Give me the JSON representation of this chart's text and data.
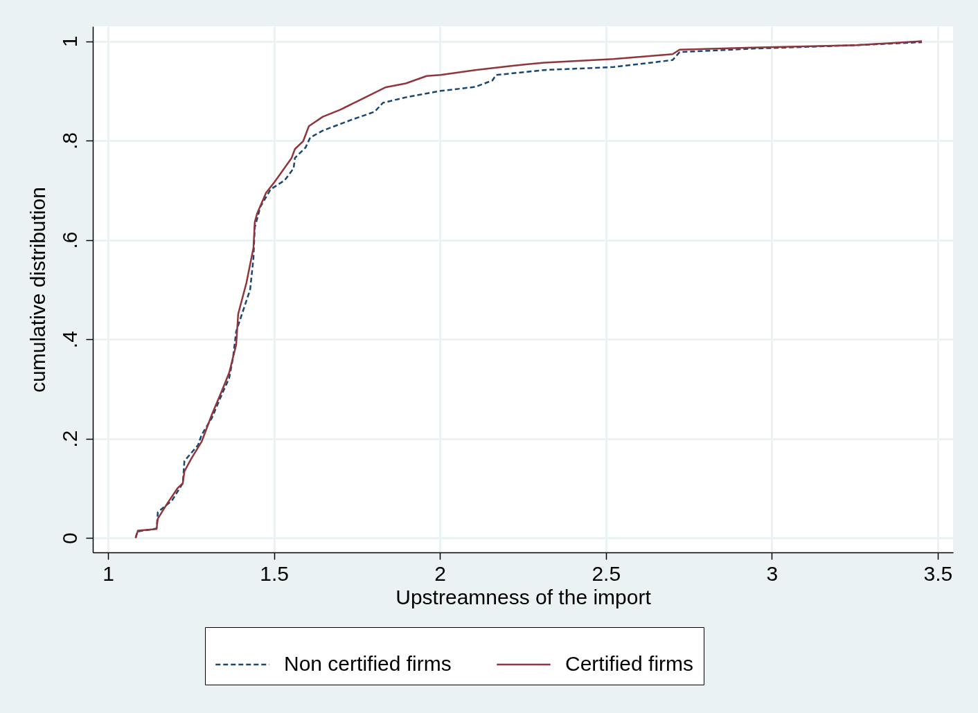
{
  "chart_data": {
    "type": "line",
    "xlabel": "Upstreamness of the import",
    "ylabel": "cumulative distribution",
    "xlim": [
      0.954,
      3.546
    ],
    "xticks": [
      1,
      1.5,
      2,
      2.5,
      3,
      3.5
    ],
    "ylim": [
      -0.029,
      1.03
    ],
    "yticks": [
      {
        "value": 0,
        "label": "0"
      },
      {
        "value": 0.2,
        "label": ".2"
      },
      {
        "value": 0.4,
        "label": ".4"
      },
      {
        "value": 0.6,
        "label": ".6"
      },
      {
        "value": 0.8,
        "label": ".8"
      },
      {
        "value": 1,
        "label": "1"
      }
    ],
    "grid": true,
    "legend": "bottom",
    "series": [
      {
        "name": "Non certified firms",
        "color": "#1a476f",
        "line_style": "dashed",
        "x": [
          1.083,
          1.088,
          1.146,
          1.15,
          1.192,
          1.225,
          1.23,
          1.271,
          1.282,
          1.313,
          1.344,
          1.365,
          1.376,
          1.386,
          1.407,
          1.428,
          1.438,
          1.442,
          1.459,
          1.49,
          1.532,
          1.559,
          1.563,
          1.595,
          1.609,
          1.647,
          1.73,
          1.803,
          1.828,
          1.897,
          2.002,
          2.106,
          2.158,
          2.169,
          2.315,
          2.523,
          2.701,
          2.722,
          2.941,
          3.254,
          3.452
        ],
        "values": [
          0,
          0.013,
          0.019,
          0.052,
          0.075,
          0.11,
          0.155,
          0.187,
          0.208,
          0.242,
          0.291,
          0.322,
          0.361,
          0.416,
          0.458,
          0.5,
          0.563,
          0.625,
          0.667,
          0.702,
          0.72,
          0.744,
          0.765,
          0.786,
          0.806,
          0.82,
          0.841,
          0.858,
          0.876,
          0.887,
          0.9,
          0.908,
          0.921,
          0.932,
          0.942,
          0.948,
          0.962,
          0.978,
          0.985,
          0.992,
          0.998
        ]
      },
      {
        "name": "Certified firms",
        "color": "#90353b",
        "line_style": "solid",
        "x": [
          1.083,
          1.09,
          1.146,
          1.15,
          1.177,
          1.209,
          1.225,
          1.23,
          1.25,
          1.282,
          1.313,
          1.344,
          1.365,
          1.386,
          1.392,
          1.417,
          1.438,
          1.442,
          1.449,
          1.476,
          1.501,
          1.553,
          1.563,
          1.588,
          1.605,
          1.647,
          1.699,
          1.751,
          1.814,
          1.835,
          1.897,
          1.96,
          2.002,
          2.106,
          2.21,
          2.315,
          2.523,
          2.701,
          2.722,
          2.941,
          3.254,
          3.452
        ],
        "values": [
          0,
          0.015,
          0.018,
          0.039,
          0.068,
          0.1,
          0.11,
          0.134,
          0.159,
          0.194,
          0.249,
          0.298,
          0.333,
          0.389,
          0.451,
          0.514,
          0.584,
          0.636,
          0.653,
          0.695,
          0.716,
          0.765,
          0.783,
          0.799,
          0.829,
          0.848,
          0.862,
          0.879,
          0.9,
          0.907,
          0.915,
          0.93,
          0.932,
          0.942,
          0.95,
          0.957,
          0.964,
          0.974,
          0.983,
          0.987,
          0.992,
          1.0
        ]
      }
    ]
  }
}
